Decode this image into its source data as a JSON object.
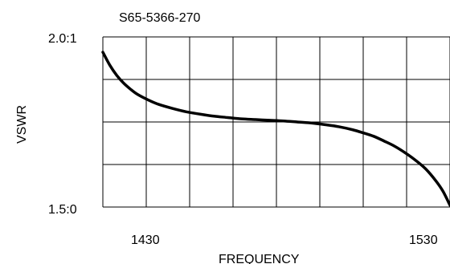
{
  "chart_data": {
    "type": "line",
    "title": "S65-5366-270",
    "xlabel": "FREQUENCY",
    "ylabel": "VSWR",
    "xlim": [
      1430,
      1530
    ],
    "ylim": [
      1.5,
      2.0
    ],
    "x_tick_labels": [
      "1430",
      "1530"
    ],
    "y_tick_labels": [
      "1.5:0",
      "2.0:1"
    ],
    "grid": true,
    "grid_divisions": {
      "x": 8,
      "y": 4
    },
    "line_color": "#000000",
    "series": [
      {
        "x": [
          1430,
          1432,
          1434,
          1436,
          1438,
          1440,
          1443,
          1446,
          1450,
          1454,
          1458,
          1462,
          1466,
          1470,
          1474,
          1478,
          1482,
          1486,
          1490,
          1494,
          1498,
          1502,
          1505,
          1508,
          1511,
          1514,
          1517,
          1520,
          1523,
          1526,
          1528,
          1530
        ],
        "y": [
          1.955,
          1.917,
          1.887,
          1.864,
          1.846,
          1.831,
          1.815,
          1.802,
          1.79,
          1.78,
          1.773,
          1.767,
          1.763,
          1.759,
          1.757,
          1.755,
          1.753,
          1.75,
          1.747,
          1.742,
          1.736,
          1.727,
          1.718,
          1.708,
          1.694,
          1.679,
          1.66,
          1.638,
          1.612,
          1.576,
          1.546,
          1.505
        ]
      }
    ]
  }
}
